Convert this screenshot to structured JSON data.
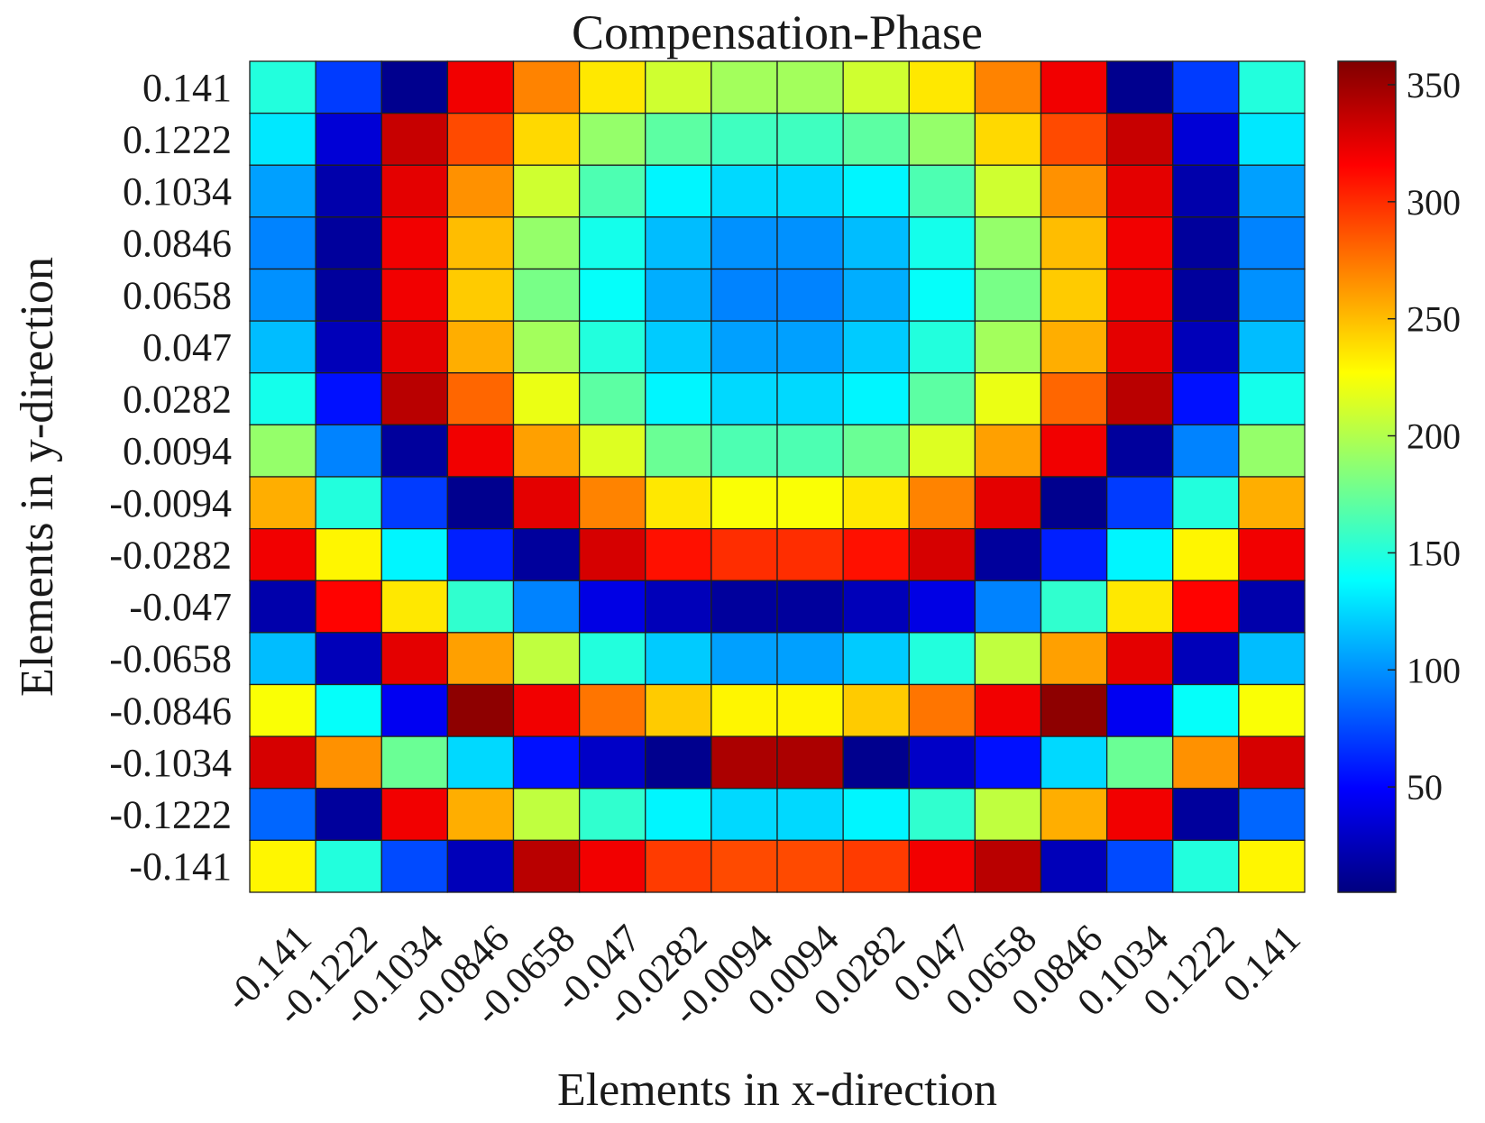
{
  "chart_data": {
    "type": "heatmap",
    "title": "Compensation-Phase",
    "xlabel": "Elements in x-direction",
    "ylabel": "Elements in y-direction",
    "x_ticks": [
      "-0.141",
      "-0.1222",
      "-0.1034",
      "-0.0846",
      "-0.0658",
      "-0.047",
      "-0.0282",
      "-0.0094",
      "0.0094",
      "0.0282",
      "0.047",
      "0.0658",
      "0.0846",
      "0.1034",
      "0.1222",
      "0.141"
    ],
    "y_ticks": [
      "0.141",
      "0.1222",
      "0.1034",
      "0.0846",
      "0.0658",
      "0.047",
      "0.0282",
      "0.0094",
      "-0.0094",
      "-0.0282",
      "-0.047",
      "-0.0658",
      "-0.0846",
      "-0.1034",
      "-0.1222",
      "-0.141"
    ],
    "colormap": "jet",
    "colorbar": {
      "range": [
        5,
        360
      ],
      "ticks": [
        50,
        100,
        150,
        200,
        250,
        300,
        350
      ],
      "colors": [
        "#00007f",
        "#0000ff",
        "#00ffff",
        "#ffff00",
        "#ff0000",
        "#7f0000"
      ]
    },
    "grid": true,
    "values": [
      [
        150,
        70,
        10,
        320,
        270,
        235,
        210,
        195,
        195,
        210,
        235,
        270,
        320,
        10,
        70,
        150
      ],
      [
        130,
        35,
        335,
        290,
        240,
        190,
        170,
        160,
        160,
        170,
        190,
        240,
        290,
        335,
        35,
        130
      ],
      [
        105,
        20,
        325,
        265,
        210,
        165,
        135,
        125,
        125,
        135,
        165,
        210,
        265,
        325,
        20,
        105
      ],
      [
        95,
        15,
        320,
        250,
        190,
        145,
        115,
        100,
        100,
        115,
        145,
        190,
        250,
        320,
        15,
        95
      ],
      [
        100,
        15,
        320,
        245,
        180,
        140,
        110,
        95,
        95,
        110,
        140,
        180,
        245,
        320,
        15,
        100
      ],
      [
        115,
        25,
        325,
        255,
        195,
        150,
        120,
        105,
        105,
        120,
        150,
        195,
        255,
        325,
        25,
        115
      ],
      [
        145,
        55,
        340,
        280,
        220,
        170,
        135,
        125,
        125,
        135,
        170,
        220,
        280,
        340,
        55,
        145
      ],
      [
        190,
        95,
        15,
        320,
        260,
        215,
        175,
        165,
        165,
        175,
        215,
        260,
        320,
        15,
        95,
        190
      ],
      [
        255,
        150,
        70,
        10,
        325,
        270,
        235,
        225,
        225,
        235,
        270,
        325,
        10,
        70,
        150,
        255
      ],
      [
        320,
        230,
        135,
        60,
        15,
        330,
        310,
        300,
        300,
        310,
        330,
        15,
        60,
        135,
        230,
        320
      ],
      [
        20,
        315,
        235,
        155,
        95,
        40,
        25,
        15,
        15,
        25,
        40,
        95,
        155,
        235,
        315,
        20
      ],
      [
        115,
        25,
        325,
        260,
        205,
        150,
        120,
        105,
        105,
        120,
        150,
        205,
        260,
        325,
        25,
        115
      ],
      [
        225,
        140,
        45,
        355,
        320,
        275,
        245,
        230,
        230,
        245,
        275,
        320,
        355,
        45,
        140,
        225
      ],
      [
        330,
        265,
        175,
        125,
        55,
        30,
        10,
        345,
        345,
        10,
        30,
        55,
        125,
        175,
        265,
        330
      ],
      [
        85,
        15,
        320,
        255,
        205,
        155,
        135,
        125,
        125,
        135,
        155,
        205,
        255,
        320,
        15,
        85
      ],
      [
        230,
        150,
        75,
        25,
        340,
        320,
        295,
        290,
        290,
        295,
        320,
        340,
        25,
        75,
        150,
        230
      ]
    ]
  }
}
